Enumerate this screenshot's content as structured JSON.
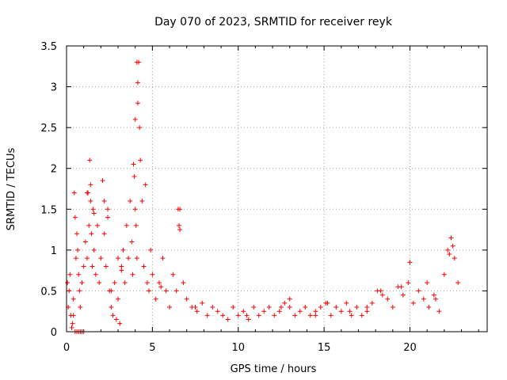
{
  "chart_data": {
    "type": "scatter",
    "title": "Day 070 of 2023, SRMTID for receiver reyk",
    "xlabel": "GPS time / hours",
    "ylabel": "SRMTID / TECUs",
    "xlim": [
      0,
      24.5
    ],
    "ylim": [
      0,
      3.5
    ],
    "x_ticks": [
      0,
      5,
      10,
      15,
      20
    ],
    "x_tick_labels": [
      "0",
      "5",
      "10",
      "15",
      "20"
    ],
    "y_ticks": [
      0,
      0.5,
      1,
      1.5,
      2,
      2.5,
      3,
      3.5
    ],
    "y_tick_labels": [
      "0",
      "0.5",
      "1",
      "1.5",
      "2",
      "2.5",
      "3",
      "3.5"
    ],
    "grid": true,
    "marker": "+",
    "color": "#ff0000",
    "series": [
      {
        "name": "SRMTID",
        "x": [
          0.05,
          0.1,
          0.15,
          0.2,
          0.25,
          0.3,
          0.35,
          0.4,
          0.45,
          0.5,
          0.55,
          0.6,
          0.65,
          0.7,
          0.75,
          0.8,
          0.9,
          1.0,
          1.1,
          1.2,
          1.25,
          1.3,
          1.35,
          1.4,
          1.45,
          1.5,
          1.55,
          1.6,
          1.7,
          1.8,
          1.9,
          2.0,
          2.1,
          2.2,
          2.3,
          2.4,
          2.5,
          2.6,
          2.7,
          2.8,
          2.9,
          3.0,
          3.1,
          3.2,
          3.3,
          3.4,
          3.5,
          3.6,
          3.7,
          3.8,
          3.85,
          3.9,
          3.95,
          4.0,
          4.05,
          4.1,
          4.15,
          4.2,
          4.25,
          4.3,
          4.4,
          4.5,
          4.6,
          4.7,
          4.8,
          4.9,
          5.0,
          5.2,
          5.4,
          5.6,
          5.8,
          6.0,
          6.2,
          6.4,
          6.6,
          6.8,
          7.0,
          7.3,
          7.6,
          7.9,
          8.2,
          8.5,
          8.8,
          9.1,
          9.4,
          9.7,
          10.0,
          10.3,
          10.6,
          10.9,
          11.2,
          11.5,
          11.8,
          12.1,
          12.4,
          12.7,
          13.0,
          13.3,
          13.6,
          13.9,
          14.2,
          14.5,
          14.8,
          15.1,
          15.4,
          15.7,
          16.0,
          16.3,
          16.6,
          16.9,
          17.2,
          17.5,
          17.8,
          18.1,
          18.4,
          18.7,
          19.0,
          19.3,
          19.6,
          19.9,
          20.2,
          20.5,
          20.8,
          21.1,
          21.4,
          21.7,
          22.0,
          22.2,
          22.4,
          22.6,
          22.8,
          0.5,
          0.6,
          0.7,
          0.8,
          0.9,
          1.0,
          1.2,
          1.4,
          1.6,
          2.2,
          2.4,
          3.0,
          3.2,
          4.0,
          4.1,
          4.15,
          6.5,
          6.55,
          6.6,
          13.0,
          15.2,
          18.3,
          20.0,
          21.0,
          22.3,
          22.5,
          0.4,
          2.6,
          5.5,
          7.5,
          10.5,
          12.5,
          14.5,
          16.5,
          17.5,
          19.5,
          21.5
        ],
        "y": [
          0.6,
          0.3,
          0.5,
          0.7,
          0.2,
          0.05,
          0.1,
          0.4,
          1.7,
          1.4,
          0.9,
          1.2,
          1.0,
          0.7,
          0.5,
          0.3,
          0.6,
          0.8,
          1.1,
          0.9,
          1.7,
          1.3,
          2.1,
          1.6,
          1.2,
          0.8,
          1.5,
          1.0,
          0.7,
          1.3,
          0.6,
          0.9,
          1.85,
          1.2,
          0.8,
          1.4,
          0.5,
          0.3,
          0.2,
          0.6,
          0.15,
          0.4,
          0.1,
          0.8,
          1.0,
          0.6,
          1.3,
          0.9,
          1.6,
          1.1,
          0.7,
          2.05,
          1.9,
          1.5,
          1.3,
          0.9,
          2.8,
          3.3,
          2.5,
          2.1,
          1.6,
          0.8,
          1.8,
          0.6,
          0.5,
          1.0,
          0.7,
          0.4,
          0.6,
          0.9,
          0.5,
          0.3,
          0.7,
          0.5,
          1.5,
          0.6,
          0.4,
          0.3,
          0.25,
          0.35,
          0.2,
          0.3,
          0.25,
          0.2,
          0.15,
          0.3,
          0.2,
          0.25,
          0.15,
          0.3,
          0.2,
          0.25,
          0.3,
          0.2,
          0.25,
          0.35,
          0.3,
          0.2,
          0.25,
          0.3,
          0.2,
          0.25,
          0.3,
          0.35,
          0.2,
          0.3,
          0.25,
          0.35,
          0.2,
          0.3,
          0.2,
          0.25,
          0.35,
          0.5,
          0.45,
          0.4,
          0.3,
          0.55,
          0.45,
          0.6,
          0.35,
          0.5,
          0.4,
          0.3,
          0.45,
          0.25,
          0.7,
          1.0,
          1.15,
          0.9,
          0.6,
          0.0,
          0.0,
          0.0,
          0.0,
          0.0,
          0.0,
          1.7,
          1.8,
          1.45,
          1.6,
          1.5,
          0.9,
          0.75,
          2.6,
          3.3,
          3.05,
          1.5,
          1.3,
          1.25,
          0.4,
          0.35,
          0.5,
          0.85,
          0.6,
          0.95,
          1.05,
          0.2,
          0.5,
          0.55,
          0.3,
          0.2,
          0.3,
          0.2,
          0.25,
          0.3,
          0.55,
          0.4
        ]
      }
    ]
  }
}
